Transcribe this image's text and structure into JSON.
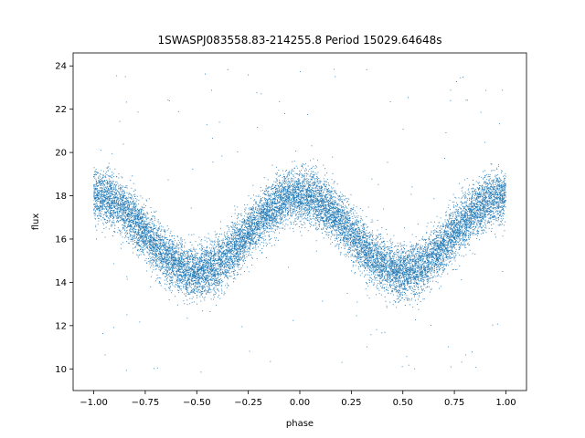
{
  "chart_data": {
    "type": "scatter",
    "title": "1SWASPJ083558.83-214255.8 Period 15029.64648s",
    "xlabel": "phase",
    "ylabel": "flux",
    "xlim": [
      -1.1,
      1.1
    ],
    "ylim": [
      9.0,
      24.6
    ],
    "xticks": [
      -1.0,
      -0.75,
      -0.5,
      -0.25,
      0.0,
      0.25,
      0.5,
      0.75,
      1.0
    ],
    "xtick_labels": [
      "−1.00",
      "−0.75",
      "−0.50",
      "−0.25",
      "0.00",
      "0.25",
      "0.50",
      "0.75",
      "1.00"
    ],
    "yticks": [
      10,
      12,
      14,
      16,
      18,
      20,
      22,
      24
    ],
    "ytick_labels": [
      "10",
      "12",
      "14",
      "16",
      "18",
      "20",
      "22",
      "24"
    ],
    "grid": false,
    "marker_color": "#1f77b4",
    "series": [
      {
        "model": "sinusoid_folded_lightcurve",
        "x_range": [
          -1.0,
          1.0
        ],
        "mean_flux": 16.25,
        "amplitude": 1.75,
        "period_in_phase": 1.0,
        "peak_phase": 0.0,
        "minimum_phase": 0.5,
        "scatter_sigma": 0.6,
        "point_count": 15000,
        "outlier_count": 140,
        "outlier_flux_range": [
          9.8,
          23.9
        ]
      }
    ]
  }
}
